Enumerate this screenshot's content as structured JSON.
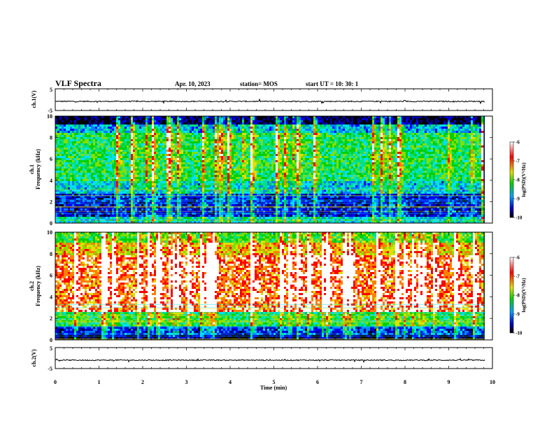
{
  "header": {
    "title": "VLF Spectra",
    "date": "Apr. 10, 2023",
    "station": "station= MOS",
    "start_ut": "start  UT =  10: 30: 1"
  },
  "chart_data": [
    {
      "type": "line",
      "name": "ch1-waveform",
      "ylabel": "ch.1(V)",
      "ylim": [
        -5,
        5
      ],
      "yticks": [
        "5",
        "-5"
      ],
      "x": [
        0,
        10
      ],
      "y": [
        -0.8,
        -0.8
      ]
    },
    {
      "type": "heatmap",
      "name": "ch1-spectrogram",
      "ylabel": "ch.1\nFrequency (kHz)",
      "ylim": [
        0,
        10
      ],
      "yticks": [
        "0",
        "2",
        "4",
        "6",
        "8",
        "10"
      ],
      "xlim": [
        0,
        10
      ],
      "colorbar": {
        "label": "log(PSD)(V²/Hz)",
        "range": [
          -10,
          -6
        ],
        "ticks": [
          "-6",
          "-7",
          "-8",
          "-9",
          "-10"
        ]
      }
    },
    {
      "type": "heatmap",
      "name": "ch2-spectrogram",
      "ylabel": "ch.2\nFrequency (kHz)",
      "ylim": [
        0,
        10
      ],
      "yticks": [
        "0",
        "2",
        "4",
        "6",
        "8",
        "10"
      ],
      "xlim": [
        0,
        10
      ],
      "colorbar": {
        "label": "log(PSD)(V²/Hz)",
        "range": [
          -10,
          -6
        ],
        "ticks": [
          "-6",
          "-7",
          "-8",
          "-9",
          "-10"
        ]
      }
    },
    {
      "type": "line",
      "name": "ch2-waveform",
      "ylabel": "ch.2(V)",
      "ylim": [
        -5,
        5
      ],
      "yticks": [
        "5",
        "-5"
      ],
      "x": [
        0,
        10
      ],
      "y": [
        -1.0,
        -1.0
      ]
    }
  ],
  "xaxis": {
    "label": "Time  (min)",
    "range": [
      0,
      10
    ],
    "ticks": [
      "0",
      "1",
      "2",
      "3",
      "4",
      "5",
      "6",
      "7",
      "8",
      "9",
      "10"
    ]
  },
  "colors": {
    "low": "#000000",
    "mid": "#00c000",
    "high": "#ff0000",
    "max": "#ffffff"
  }
}
